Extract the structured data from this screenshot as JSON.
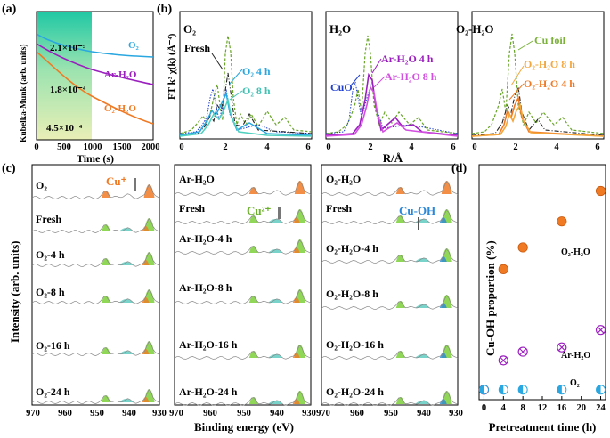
{
  "panel_labels": {
    "a": "(a)",
    "b": "(b)",
    "c": "(c)",
    "d": "(d)"
  },
  "colors": {
    "o2": "#2aa7e0",
    "ar": "#9b1fbf",
    "o2h2o": "#f07a24",
    "green": "#2e8b2e",
    "cuo": "#1f3fd0",
    "cufoil": "#7bb23a",
    "cu_plus": "#f07a24",
    "cu2": "#6ab02a",
    "cuoh": "#2b87d8",
    "teal": "#7fe0c9",
    "darkgreen": "#1d8c3c"
  },
  "panel_a": {
    "ylabel": "Kubelka-Munk (arb. units)",
    "xlabel": "Time (s)",
    "xticks": [
      "0",
      "500",
      "1000",
      "1500",
      "2000"
    ],
    "series_labels": {
      "o2": "O₂",
      "ar": "Ar-H₂O",
      "o2h2o": "O₂-H₂O"
    },
    "rate_labels": {
      "o2": "2.1×10⁻⁵",
      "ar": "1.8×10⁻⁴",
      "o2h2o": "4.5×10⁻⁴"
    }
  },
  "panel_b": {
    "ylabel": "FT k³ χ(k) (Å⁻⁴)",
    "xlabel": "R/Å",
    "sub_titles": {
      "o2": "O₂",
      "h2o": "H₂O",
      "o2h2o": "O₂-H₂O"
    },
    "xticks": [
      "0",
      "2",
      "4",
      "6"
    ],
    "labels": {
      "fresh": "Fresh",
      "o2_4h": "O₂ 4 h",
      "o2_8h": "O₂ 8 h",
      "cuo": "CuO",
      "ar_4h": "Ar-H₂O 4 h",
      "ar_8h": "Ar-H₂O 8 h",
      "cufoil": "Cu foil",
      "o2h2o_8h": "O₂-H₂O 8 h",
      "o2h2o_4h": "O₂-H₂O 4 h"
    }
  },
  "panel_c": {
    "ylabel": "Intensity (arb. units)",
    "xlabel": "Binding energy (eV)",
    "xticks": [
      "970",
      "960",
      "950",
      "940",
      "930"
    ],
    "col1": [
      "O₂",
      "Fresh",
      "O₂-4 h",
      "O₂-8 h",
      "O₂-16 h",
      "O₂-24 h"
    ],
    "col2": [
      "Ar-H₂O",
      "Fresh",
      "Ar-H₂O-4 h",
      "Ar-H₂O-8 h",
      "Ar-H₂O-16 h",
      "Ar-H₂O-24 h"
    ],
    "col3": [
      "O₂-H₂O",
      "Fresh",
      "O₂-H₂O-4 h",
      "O₂-H₂O-8 h",
      "O₂-H₂O-16 h",
      "O₂-H₂O-24 h"
    ],
    "annotations": {
      "cu_plus": "Cu⁺",
      "cu2": "Cu²⁺",
      "cuoh": "Cu-OH"
    }
  },
  "chart_data": {
    "type": "scatter",
    "title": "",
    "xlabel": "Pretreatment time (h)",
    "ylabel": "Cu-OH proportion (%)",
    "xlim": [
      -1,
      25
    ],
    "ylim": [
      0,
      100
    ],
    "xticks": [
      0,
      4,
      8,
      12,
      16,
      20,
      24
    ],
    "x": [
      0,
      4,
      8,
      16,
      24
    ],
    "series": [
      {
        "name": "O₂-H₂O",
        "marker": "filled-circle",
        "values": [
          0.5,
          56,
          66,
          78,
          92
        ]
      },
      {
        "name": "Ar-H₂O",
        "marker": "crossed-circle",
        "values": [
          0.5,
          14,
          18,
          20,
          28
        ]
      },
      {
        "name": "O₂",
        "marker": "half-circle",
        "values": [
          0.5,
          0.5,
          0.5,
          0.5,
          0.5
        ]
      }
    ]
  }
}
